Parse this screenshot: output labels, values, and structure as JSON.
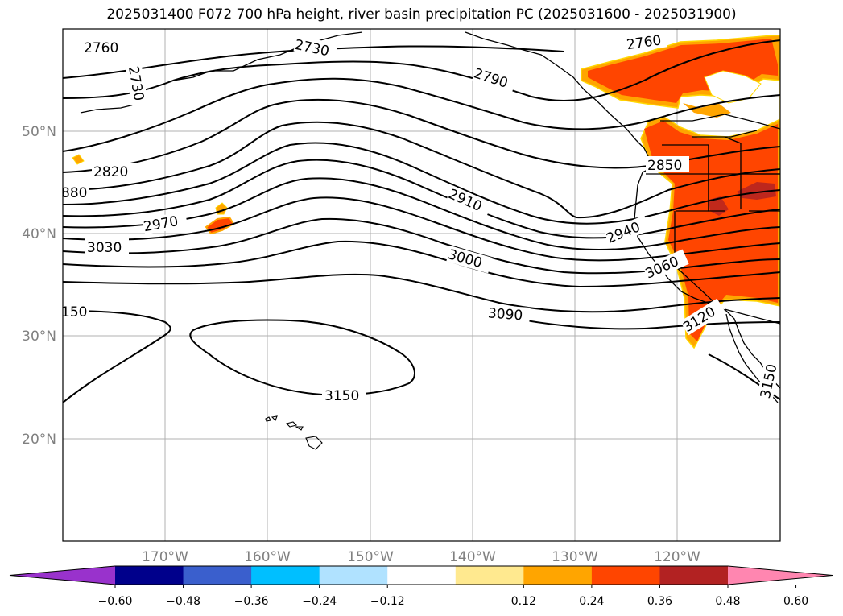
{
  "title": "2025031400 F072 700 hPa height, river basin precipitation PC (2025031600 - 2025031900)",
  "map": {
    "lat_labels": [
      "50°N",
      "40°N",
      "30°N",
      "20°N"
    ],
    "lon_labels": [
      "170°W",
      "160°W",
      "150°W",
      "140°W",
      "130°W",
      "120°W"
    ],
    "gridlines": true,
    "contour_labels": [
      "2760",
      "2730",
      "2730",
      "2760",
      "2790",
      "2820",
      "880",
      "2850",
      "2910",
      "2970",
      "2940",
      "3030",
      "3000",
      "3060",
      "150",
      "3090",
      "3120",
      "3150",
      "3150"
    ]
  },
  "colorbar": {
    "ticks": [
      "−0.60",
      "−0.48",
      "−0.36",
      "−0.24",
      "−0.12",
      "0.12",
      "0.24",
      "0.36",
      "0.48",
      "0.60"
    ],
    "colors": [
      "#9932cc",
      "#00008b",
      "#3a5fcd",
      "#00bfff",
      "#b0e2ff",
      "#ffffff",
      "#ffe98f",
      "#ffa500",
      "#ff4500",
      "#b22222",
      "#ff86b0"
    ]
  }
}
